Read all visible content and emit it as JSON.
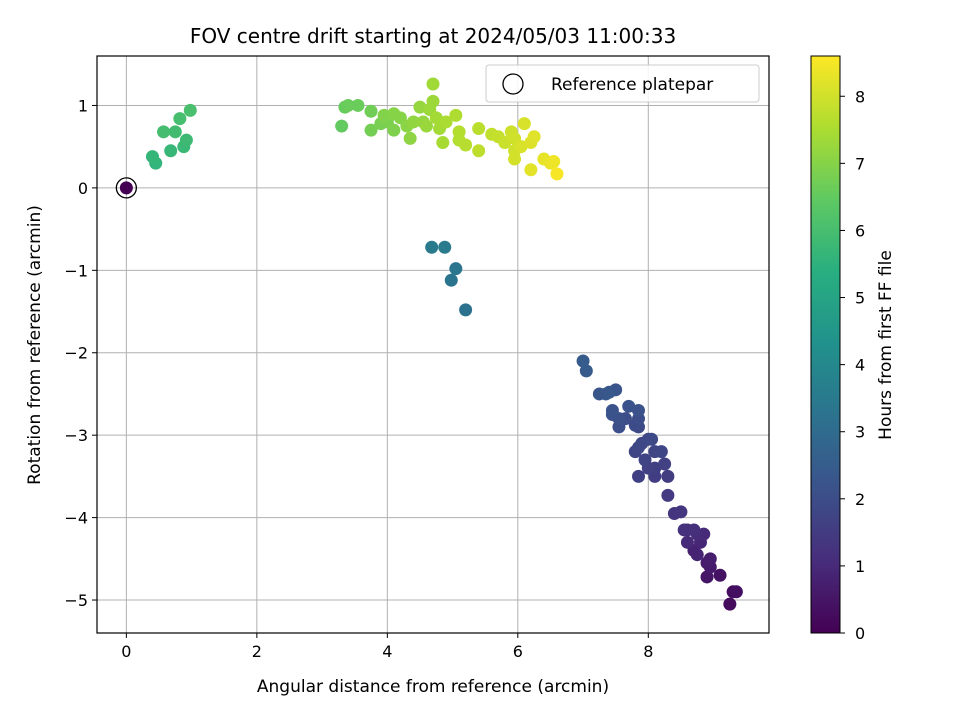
{
  "chart_data": {
    "type": "scatter",
    "title": "FOV centre drift starting at 2024/05/03 11:00:33",
    "xlabel": "Angular distance from reference (arcmin)",
    "ylabel": "Rotation from reference (arcmin)",
    "xlim": [
      -0.45,
      9.85
    ],
    "ylim": [
      -5.4,
      1.6
    ],
    "xticks": [
      0,
      2,
      4,
      6,
      8
    ],
    "yticks": [
      1,
      0,
      -1,
      -2,
      -3,
      -4,
      -5
    ],
    "xtick_labels": [
      "0",
      "2",
      "4",
      "6",
      "8"
    ],
    "ytick_labels": [
      "1",
      "0",
      "−1",
      "−2",
      "−3",
      "−4",
      "−5"
    ],
    "grid": true,
    "colormap": "viridis",
    "colorbar": {
      "label": "Hours from first FF file",
      "range": [
        0,
        8.6
      ],
      "ticks": [
        0,
        1,
        2,
        3,
        4,
        5,
        6,
        7,
        8
      ],
      "tick_labels": [
        "0",
        "1",
        "2",
        "3",
        "4",
        "5",
        "6",
        "7",
        "8"
      ]
    },
    "legend": {
      "placement": "top-right",
      "entries": [
        {
          "label": "Reference platepar",
          "marker": "open-circle"
        }
      ]
    },
    "reference_point": {
      "x": 0,
      "y": 0,
      "hours": 0
    },
    "points": [
      {
        "x": 9.25,
        "y": -5.05,
        "h": 0.25
      },
      {
        "x": 9.3,
        "y": -4.9,
        "h": 0.3
      },
      {
        "x": 9.35,
        "y": -4.9,
        "h": 0.35
      },
      {
        "x": 9.1,
        "y": -4.7,
        "h": 0.4
      },
      {
        "x": 8.9,
        "y": -4.72,
        "h": 0.5
      },
      {
        "x": 8.95,
        "y": -4.6,
        "h": 0.6
      },
      {
        "x": 8.9,
        "y": -4.55,
        "h": 0.65
      },
      {
        "x": 8.95,
        "y": -4.5,
        "h": 0.7
      },
      {
        "x": 8.7,
        "y": -4.4,
        "h": 0.8
      },
      {
        "x": 8.75,
        "y": -4.45,
        "h": 0.85
      },
      {
        "x": 8.8,
        "y": -4.3,
        "h": 0.9
      },
      {
        "x": 8.6,
        "y": -4.3,
        "h": 1.0
      },
      {
        "x": 8.85,
        "y": -4.2,
        "h": 1.0
      },
      {
        "x": 8.75,
        "y": -4.2,
        "h": 1.05
      },
      {
        "x": 8.6,
        "y": -4.15,
        "h": 1.1
      },
      {
        "x": 8.7,
        "y": -4.15,
        "h": 1.15
      },
      {
        "x": 8.55,
        "y": -4.15,
        "h": 1.2
      },
      {
        "x": 8.4,
        "y": -3.95,
        "h": 1.3
      },
      {
        "x": 8.5,
        "y": -3.93,
        "h": 1.35
      },
      {
        "x": 8.3,
        "y": -3.73,
        "h": 1.45
      },
      {
        "x": 8.3,
        "y": -3.5,
        "h": 1.5
      },
      {
        "x": 8.1,
        "y": -3.5,
        "h": 1.55
      },
      {
        "x": 7.85,
        "y": -3.5,
        "h": 1.6
      },
      {
        "x": 8.1,
        "y": -3.4,
        "h": 1.6
      },
      {
        "x": 8.0,
        "y": -3.4,
        "h": 1.65
      },
      {
        "x": 8.25,
        "y": -3.35,
        "h": 1.65
      },
      {
        "x": 7.95,
        "y": -3.3,
        "h": 1.7
      },
      {
        "x": 8.1,
        "y": -3.2,
        "h": 1.75
      },
      {
        "x": 7.8,
        "y": -3.2,
        "h": 1.75
      },
      {
        "x": 7.85,
        "y": -3.15,
        "h": 1.8
      },
      {
        "x": 8.2,
        "y": -3.2,
        "h": 1.8
      },
      {
        "x": 7.9,
        "y": -3.1,
        "h": 1.85
      },
      {
        "x": 8.0,
        "y": -3.05,
        "h": 1.85
      },
      {
        "x": 8.05,
        "y": -3.05,
        "h": 1.9
      },
      {
        "x": 7.85,
        "y": -2.9,
        "h": 1.9
      },
      {
        "x": 7.8,
        "y": -2.88,
        "h": 1.95
      },
      {
        "x": 7.85,
        "y": -2.8,
        "h": 2.0
      },
      {
        "x": 7.65,
        "y": -2.8,
        "h": 2.0
      },
      {
        "x": 7.55,
        "y": -2.9,
        "h": 2.05
      },
      {
        "x": 7.55,
        "y": -2.8,
        "h": 2.1
      },
      {
        "x": 7.45,
        "y": -2.75,
        "h": 2.15
      },
      {
        "x": 7.85,
        "y": -2.7,
        "h": 2.15
      },
      {
        "x": 7.7,
        "y": -2.65,
        "h": 2.2
      },
      {
        "x": 7.45,
        "y": -2.7,
        "h": 2.2
      },
      {
        "x": 7.5,
        "y": -2.45,
        "h": 2.25
      },
      {
        "x": 7.35,
        "y": -2.5,
        "h": 2.3
      },
      {
        "x": 7.25,
        "y": -2.5,
        "h": 2.3
      },
      {
        "x": 7.4,
        "y": -2.48,
        "h": 2.35
      },
      {
        "x": 7.05,
        "y": -2.22,
        "h": 2.45
      },
      {
        "x": 7.0,
        "y": -2.1,
        "h": 2.5
      },
      {
        "x": 5.2,
        "y": -1.48,
        "h": 3.2
      },
      {
        "x": 4.98,
        "y": -1.12,
        "h": 3.3
      },
      {
        "x": 5.05,
        "y": -0.98,
        "h": 3.35
      },
      {
        "x": 4.68,
        "y": -0.72,
        "h": 3.5
      },
      {
        "x": 4.88,
        "y": -0.72,
        "h": 3.55
      },
      {
        "x": 0.45,
        "y": 0.3,
        "h": 5.6
      },
      {
        "x": 0.4,
        "y": 0.38,
        "h": 5.65
      },
      {
        "x": 0.68,
        "y": 0.45,
        "h": 5.7
      },
      {
        "x": 0.88,
        "y": 0.5,
        "h": 5.75
      },
      {
        "x": 0.92,
        "y": 0.58,
        "h": 5.8
      },
      {
        "x": 0.75,
        "y": 0.68,
        "h": 5.9
      },
      {
        "x": 0.57,
        "y": 0.68,
        "h": 5.95
      },
      {
        "x": 0.82,
        "y": 0.84,
        "h": 6.0
      },
      {
        "x": 0.98,
        "y": 0.94,
        "h": 6.05
      },
      {
        "x": 3.3,
        "y": 0.75,
        "h": 6.5
      },
      {
        "x": 3.35,
        "y": 0.98,
        "h": 6.55
      },
      {
        "x": 3.55,
        "y": 1.0,
        "h": 6.6
      },
      {
        "x": 3.4,
        "y": 1.0,
        "h": 6.6
      },
      {
        "x": 3.75,
        "y": 0.93,
        "h": 6.7
      },
      {
        "x": 3.75,
        "y": 0.7,
        "h": 6.75
      },
      {
        "x": 3.9,
        "y": 0.78,
        "h": 6.8
      },
      {
        "x": 4.0,
        "y": 0.8,
        "h": 6.85
      },
      {
        "x": 4.1,
        "y": 0.7,
        "h": 6.9
      },
      {
        "x": 3.95,
        "y": 0.88,
        "h": 6.95
      },
      {
        "x": 4.1,
        "y": 0.9,
        "h": 7.0
      },
      {
        "x": 4.2,
        "y": 0.85,
        "h": 7.0
      },
      {
        "x": 4.3,
        "y": 0.75,
        "h": 7.05
      },
      {
        "x": 4.35,
        "y": 0.6,
        "h": 7.1
      },
      {
        "x": 4.4,
        "y": 0.8,
        "h": 7.15
      },
      {
        "x": 4.5,
        "y": 0.98,
        "h": 7.2
      },
      {
        "x": 4.55,
        "y": 0.8,
        "h": 7.2
      },
      {
        "x": 4.6,
        "y": 0.75,
        "h": 7.25
      },
      {
        "x": 4.65,
        "y": 0.95,
        "h": 7.3
      },
      {
        "x": 4.7,
        "y": 1.05,
        "h": 7.3
      },
      {
        "x": 4.7,
        "y": 1.26,
        "h": 7.35
      },
      {
        "x": 4.75,
        "y": 0.85,
        "h": 7.4
      },
      {
        "x": 4.8,
        "y": 0.72,
        "h": 7.4
      },
      {
        "x": 4.85,
        "y": 0.55,
        "h": 7.45
      },
      {
        "x": 4.9,
        "y": 0.8,
        "h": 7.5
      },
      {
        "x": 5.05,
        "y": 0.88,
        "h": 7.55
      },
      {
        "x": 5.1,
        "y": 0.68,
        "h": 7.6
      },
      {
        "x": 5.1,
        "y": 0.58,
        "h": 7.6
      },
      {
        "x": 5.2,
        "y": 0.52,
        "h": 7.65
      },
      {
        "x": 5.4,
        "y": 0.72,
        "h": 7.7
      },
      {
        "x": 5.4,
        "y": 0.45,
        "h": 7.75
      },
      {
        "x": 5.6,
        "y": 0.65,
        "h": 7.8
      },
      {
        "x": 5.7,
        "y": 0.62,
        "h": 7.85
      },
      {
        "x": 5.8,
        "y": 0.55,
        "h": 7.9
      },
      {
        "x": 5.9,
        "y": 0.68,
        "h": 7.95
      },
      {
        "x": 5.95,
        "y": 0.6,
        "h": 8.0
      },
      {
        "x": 5.95,
        "y": 0.45,
        "h": 8.0
      },
      {
        "x": 5.95,
        "y": 0.35,
        "h": 8.05
      },
      {
        "x": 6.05,
        "y": 0.5,
        "h": 8.1
      },
      {
        "x": 6.1,
        "y": 0.78,
        "h": 8.1
      },
      {
        "x": 6.2,
        "y": 0.55,
        "h": 8.15
      },
      {
        "x": 6.25,
        "y": 0.62,
        "h": 8.2
      },
      {
        "x": 6.2,
        "y": 0.22,
        "h": 8.25
      },
      {
        "x": 6.4,
        "y": 0.35,
        "h": 8.3
      },
      {
        "x": 6.5,
        "y": 0.3,
        "h": 8.35
      },
      {
        "x": 6.55,
        "y": 0.32,
        "h": 8.4
      },
      {
        "x": 6.6,
        "y": 0.17,
        "h": 8.5
      }
    ]
  }
}
